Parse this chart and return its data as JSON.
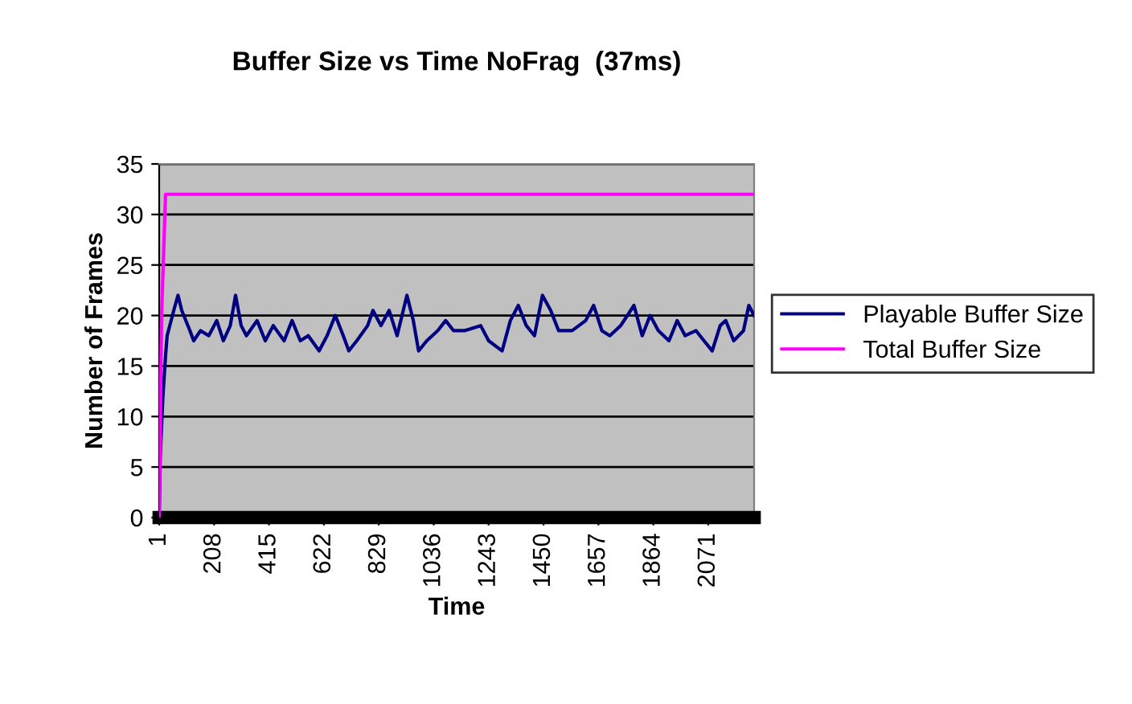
{
  "chart_data": {
    "type": "line",
    "title": "Buffer Size vs Time NoFrag  (37ms)",
    "xlabel": "Time",
    "ylabel": "Number of Frames",
    "xlim": [
      1,
      2244
    ],
    "xticks": [
      1,
      208,
      415,
      622,
      829,
      1036,
      1243,
      1450,
      1657,
      1864,
      2071
    ],
    "ylim": [
      0,
      35
    ],
    "yticks": [
      0,
      5,
      10,
      15,
      20,
      25,
      30,
      35
    ],
    "grid": "y",
    "legend": "right",
    "marker": "none",
    "line_style": "solid",
    "series": [
      {
        "name": "Playable Buffer Size",
        "color": "#000080",
        "x": [
          1,
          5,
          15,
          25,
          31,
          56,
          72,
          86,
          117,
          131,
          157,
          188,
          218,
          243,
          269,
          289,
          310,
          330,
          370,
          401,
          431,
          472,
          502,
          533,
          563,
          604,
          634,
          665,
          695,
          716,
          746,
          787,
          807,
          837,
          868,
          898,
          935,
          959,
          979,
          1010,
          1051,
          1081,
          1111,
          1152,
          1213,
          1243,
          1294,
          1325,
          1355,
          1385,
          1416,
          1446,
          1477,
          1507,
          1558,
          1609,
          1639,
          1670,
          1700,
          1741,
          1791,
          1822,
          1852,
          1883,
          1923,
          1954,
          1984,
          2025,
          2055,
          2086,
          2116,
          2137,
          2167,
          2204,
          2224,
          2244
        ],
        "values": [
          0,
          6,
          12,
          16,
          18,
          20.5,
          22,
          20.5,
          18.5,
          17.5,
          18.5,
          18,
          19.5,
          17.5,
          19,
          22,
          19,
          18,
          19.5,
          17.5,
          19,
          17.5,
          19.5,
          17.5,
          18,
          16.5,
          18,
          20,
          18,
          16.5,
          17.5,
          19,
          20.5,
          19,
          20.5,
          18,
          22,
          19.5,
          16.5,
          17.5,
          18.5,
          19.5,
          18.5,
          18.5,
          19,
          17.5,
          16.5,
          19.5,
          21,
          19,
          18,
          22,
          20.5,
          18.5,
          18.5,
          19.5,
          21,
          18.5,
          18,
          19,
          21,
          18,
          20,
          18.5,
          17.5,
          19.5,
          18,
          18.5,
          17.5,
          16.5,
          19,
          19.5,
          17.5,
          18.5,
          21,
          20
        ]
      },
      {
        "name": "Total Buffer Size",
        "color": "#ff00ff",
        "x": [
          1,
          10,
          25,
          2244
        ],
        "values": [
          0,
          20,
          32,
          32
        ]
      }
    ]
  }
}
